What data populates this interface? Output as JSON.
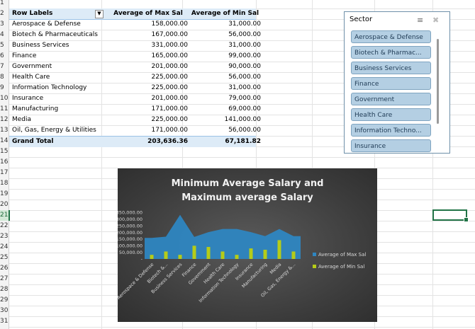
{
  "row_numbers": [
    "1",
    "2",
    "3",
    "4",
    "5",
    "6",
    "7",
    "8",
    "9",
    "10",
    "11",
    "12",
    "13",
    "14",
    "15",
    "16",
    "17",
    "18",
    "19",
    "20",
    "21",
    "22",
    "23",
    "24",
    "25",
    "26",
    "27",
    "28",
    "29",
    "30",
    "31"
  ],
  "pivot": {
    "headers": {
      "label": "Row Labels",
      "col1": "Average of Max Sal",
      "col2": "Average of Min Sal"
    },
    "rows": [
      {
        "label": "Aerospace & Defense",
        "max": "158,000.00",
        "min": "31,000.00"
      },
      {
        "label": "Biotech & Pharmaceuticals",
        "max": "167,000.00",
        "min": "56,000.00"
      },
      {
        "label": "Business Services",
        "max": "331,000.00",
        "min": "31,000.00"
      },
      {
        "label": "Finance",
        "max": "165,000.00",
        "min": "99,000.00"
      },
      {
        "label": "Government",
        "max": "201,000.00",
        "min": "90,000.00"
      },
      {
        "label": "Health Care",
        "max": "225,000.00",
        "min": "56,000.00"
      },
      {
        "label": "Information Technology",
        "max": "225,000.00",
        "min": "31,000.00"
      },
      {
        "label": "Insurance",
        "max": "201,000.00",
        "min": "79,000.00"
      },
      {
        "label": "Manufacturing",
        "max": "171,000.00",
        "min": "69,000.00"
      },
      {
        "label": "Media",
        "max": "225,000.00",
        "min": "141,000.00"
      },
      {
        "label": "Oil, Gas, Energy & Utilities",
        "max": "171,000.00",
        "min": "56,000.00"
      }
    ],
    "total": {
      "label": "Grand Total",
      "max": "203,636.36",
      "min": "67,181.82"
    }
  },
  "slicer": {
    "title": "Sector",
    "items": [
      "Aerospace & Defense",
      "Biotech & Pharmac...",
      "Business Services",
      "Finance",
      "Government",
      "Health Care",
      "Information Techno...",
      "Insurance"
    ],
    "icons": {
      "multiselect": "multi-select-icon",
      "clear": "clear-filter-icon"
    }
  },
  "chart_data": {
    "type": "area",
    "title": "Minimum Average Salary and Maximum average Salary",
    "title_line1": "Minimum Average Salary and",
    "title_line2": "Maximum average Salary",
    "categories": [
      "Aerospace & Defense",
      "Biotech & Pharmaceuticals",
      "Business Services",
      "Finance",
      "Government",
      "Health Care",
      "Information Technology",
      "Insurance",
      "Manufacturing",
      "Media",
      "Oil, Gas, Energy & Utilities"
    ],
    "category_tick_labels": [
      "Aerospace & Defense",
      "Biotech &...",
      "Business Services",
      "Finance",
      "Government",
      "Health Care",
      "Information Technology",
      "Insurance",
      "Manufacturing",
      "Media",
      "Oil, Gas, Energy &..."
    ],
    "series": [
      {
        "name": "Average of Max Sal",
        "type": "area",
        "color": "#2e86c1",
        "values": [
          158000,
          167000,
          331000,
          165000,
          201000,
          225000,
          225000,
          201000,
          171000,
          225000,
          171000
        ]
      },
      {
        "name": "Average of Min Sal",
        "type": "bar",
        "color": "#b5cc18",
        "values": [
          31000,
          56000,
          31000,
          99000,
          90000,
          56000,
          31000,
          79000,
          69000,
          141000,
          56000
        ]
      }
    ],
    "y_ticks": [
      "350,000.00",
      "300,000.00",
      "250,000.00",
      "200,000.00",
      "150,000.00",
      "100,000.00",
      "50,000.00",
      "-"
    ],
    "ylim": [
      0,
      350000
    ],
    "legend_position": "right"
  }
}
